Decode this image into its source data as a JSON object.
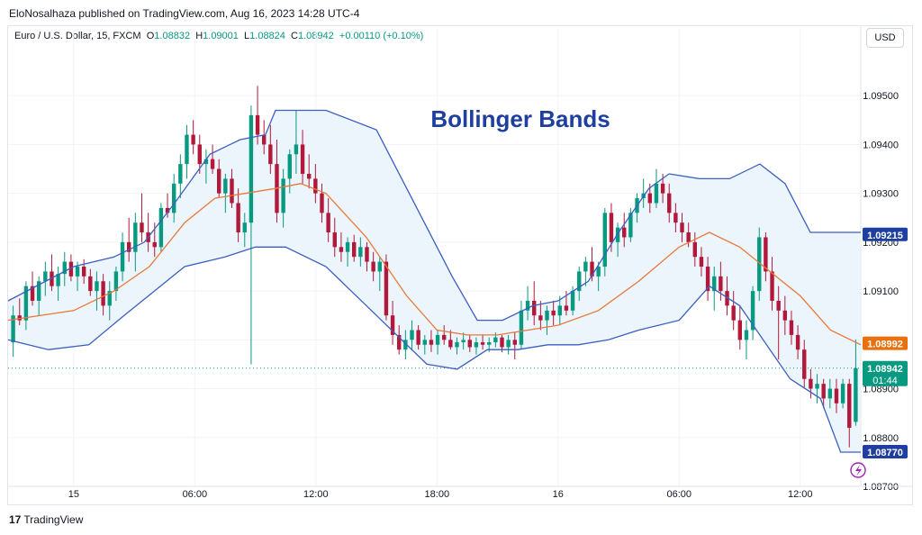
{
  "header": {
    "publisher": "EloNosalhaza published on TradingView.com, Aug 16, 2023 14:28 UTC-4"
  },
  "legend": {
    "symbol": "Euro / U.S. Dollar, 15, FXCM",
    "o_label": "O",
    "o_value": "1.08832",
    "h_label": "H",
    "h_value": "1.09001",
    "l_label": "L",
    "l_value": "1.08824",
    "c_label": "C",
    "c_value": "1.08942",
    "change": "+0.00110 (+0.10%)"
  },
  "currency": "USD",
  "footer": {
    "brand": "TradingView",
    "logo": "17"
  },
  "colors": {
    "up": "#089981",
    "down": "#b2183a",
    "band": "#3b5fc0",
    "fill": "#e9f3fb",
    "basis": "#e8793a",
    "accent": "#1e3fa0"
  },
  "chart_data": {
    "type": "candlestick",
    "title": "Bollinger Bands",
    "interval": "15",
    "ylim": [
      1.087,
      1.096
    ],
    "yticks": [
      "1.09500",
      "1.09400",
      "1.09300",
      "1.09200",
      "1.09100",
      "1.09000",
      "1.08900",
      "1.08800",
      "1.08700"
    ],
    "xticks": [
      {
        "label": "15",
        "t": 0
      },
      {
        "label": "06:00",
        "t": 24
      },
      {
        "label": "12:00",
        "t": 48
      },
      {
        "label": "18:00",
        "t": 72
      },
      {
        "label": "16",
        "t": 96
      },
      {
        "label": "06:00",
        "t": 120
      },
      {
        "label": "12:00",
        "t": 144
      }
    ],
    "t_range": [
      -13,
      156
    ],
    "price_labels": [
      {
        "value": 1.09215,
        "text": "1.09215",
        "color": "#1e3fa0"
      },
      {
        "value": 1.08992,
        "text": "1.08992",
        "color": "#e8700f"
      },
      {
        "value": 1.08942,
        "text": "1.08942",
        "sub": "01:44",
        "color": "#089981"
      },
      {
        "value": 1.0877,
        "text": "1.08770",
        "color": "#1e3fa0"
      }
    ],
    "candles": [
      [
        1.08995,
        1.0907,
        1.08965,
        1.0905
      ],
      [
        1.0905,
        1.09085,
        1.0903,
        1.0904
      ],
      [
        1.0904,
        1.0912,
        1.0902,
        1.0911
      ],
      [
        1.0911,
        1.0914,
        1.0907,
        1.0908
      ],
      [
        1.0908,
        1.0913,
        1.0905,
        1.0912
      ],
      [
        1.0912,
        1.0916,
        1.0909,
        1.0914
      ],
      [
        1.0914,
        1.09175,
        1.091,
        1.0911
      ],
      [
        1.0911,
        1.0915,
        1.0908,
        1.09135
      ],
      [
        1.09135,
        1.0918,
        1.0911,
        1.0916
      ],
      [
        1.0916,
        1.09175,
        1.0912,
        1.0913
      ],
      [
        1.0913,
        1.0916,
        1.091,
        1.0915
      ],
      [
        1.0915,
        1.09165,
        1.09115,
        1.0913
      ],
      [
        1.0913,
        1.09145,
        1.0909,
        1.091
      ],
      [
        1.091,
        1.0914,
        1.0906,
        1.0912
      ],
      [
        1.0912,
        1.09135,
        1.0905,
        1.0907
      ],
      [
        1.0907,
        1.0912,
        1.0904,
        1.091
      ],
      [
        1.091,
        1.0915,
        1.0908,
        1.0914
      ],
      [
        1.0914,
        1.0922,
        1.0912,
        1.092
      ],
      [
        1.092,
        1.0925,
        1.0916,
        1.0918
      ],
      [
        1.0918,
        1.0926,
        1.0914,
        1.0924
      ],
      [
        1.0924,
        1.093,
        1.092,
        1.0922
      ],
      [
        1.0922,
        1.0926,
        1.0918,
        1.092
      ],
      [
        1.092,
        1.0924,
        1.0917,
        1.0919
      ],
      [
        1.0919,
        1.0928,
        1.0918,
        1.0927
      ],
      [
        1.0927,
        1.093,
        1.0925,
        1.0926
      ],
      [
        1.0926,
        1.0934,
        1.0924,
        1.0932
      ],
      [
        1.0932,
        1.0938,
        1.0929,
        1.0936
      ],
      [
        1.0936,
        1.0944,
        1.0933,
        1.0942
      ],
      [
        1.0942,
        1.0945,
        1.0938,
        1.094
      ],
      [
        1.094,
        1.0942,
        1.0934,
        1.0936
      ],
      [
        1.0936,
        1.0939,
        1.0932,
        1.0937
      ],
      [
        1.0937,
        1.094,
        1.0934,
        1.0935
      ],
      [
        1.0935,
        1.0937,
        1.0929,
        1.093
      ],
      [
        1.093,
        1.0934,
        1.0926,
        1.0933
      ],
      [
        1.0933,
        1.0935,
        1.0927,
        1.0928
      ],
      [
        1.0928,
        1.0931,
        1.092,
        1.0922
      ],
      [
        1.0922,
        1.0926,
        1.0919,
        1.0924
      ],
      [
        1.0924,
        1.0948,
        1.0895,
        1.0946
      ],
      [
        1.0946,
        1.0952,
        1.094,
        1.0942
      ],
      [
        1.0942,
        1.0945,
        1.0938,
        1.094
      ],
      [
        1.094,
        1.0944,
        1.0934,
        1.0936
      ],
      [
        1.0936,
        1.0941,
        1.0924,
        1.0926
      ],
      [
        1.0926,
        1.0935,
        1.0923,
        1.0933
      ],
      [
        1.0933,
        1.0939,
        1.093,
        1.0938
      ],
      [
        1.0938,
        1.0947,
        1.0934,
        1.094
      ],
      [
        1.094,
        1.0943,
        1.0932,
        1.0934
      ],
      [
        1.0934,
        1.0938,
        1.0931,
        1.0933
      ],
      [
        1.0933,
        1.0936,
        1.0928,
        1.093
      ],
      [
        1.093,
        1.0932,
        1.0924,
        1.0926
      ],
      [
        1.0926,
        1.0929,
        1.092,
        1.0922
      ],
      [
        1.0922,
        1.0925,
        1.0917,
        1.0919
      ],
      [
        1.0919,
        1.0922,
        1.0916,
        1.0918
      ],
      [
        1.0918,
        1.0921,
        1.0915,
        1.092
      ],
      [
        1.092,
        1.09215,
        1.0916,
        1.0917
      ],
      [
        1.0917,
        1.0921,
        1.0915,
        1.0919
      ],
      [
        1.0919,
        1.092,
        1.0914,
        1.0916
      ],
      [
        1.0916,
        1.0918,
        1.0912,
        1.0914
      ],
      [
        1.0914,
        1.0917,
        1.091,
        1.0916
      ],
      [
        1.0916,
        1.09175,
        1.0904,
        1.0905
      ],
      [
        1.0905,
        1.0908,
        1.0899,
        1.0901
      ],
      [
        1.0901,
        1.0903,
        1.0897,
        1.0898
      ],
      [
        1.0898,
        1.0902,
        1.0896,
        1.09
      ],
      [
        1.09,
        1.0904,
        1.0898,
        1.0902
      ],
      [
        1.0902,
        1.0903,
        1.0898,
        1.0899
      ],
      [
        1.0899,
        1.0901,
        1.0897,
        1.09
      ],
      [
        1.09,
        1.0902,
        1.08975,
        1.0899
      ],
      [
        1.0899,
        1.0902,
        1.0897,
        1.0901
      ],
      [
        1.0901,
        1.0903,
        1.0899,
        1.09
      ],
      [
        1.09,
        1.0902,
        1.0898,
        1.08985
      ],
      [
        1.08985,
        1.09005,
        1.0897,
        1.08995
      ],
      [
        1.08995,
        1.09015,
        1.0898,
        1.09
      ],
      [
        1.09,
        1.0901,
        1.08975,
        1.08985
      ],
      [
        1.08985,
        1.09005,
        1.0897,
        1.08995
      ],
      [
        1.08995,
        1.0901,
        1.0898,
        1.0899
      ],
      [
        1.0899,
        1.09005,
        1.08975,
        1.08995
      ],
      [
        1.08995,
        1.09015,
        1.08985,
        1.09005
      ],
      [
        1.09005,
        1.0901,
        1.08975,
        1.08985
      ],
      [
        1.08985,
        1.0901,
        1.0897,
        1.09
      ],
      [
        1.09,
        1.09015,
        1.0896,
        1.0899
      ],
      [
        1.0899,
        1.0908,
        1.0898,
        1.0906
      ],
      [
        1.0906,
        1.0911,
        1.0904,
        1.0908
      ],
      [
        1.0908,
        1.0912,
        1.0903,
        1.0905
      ],
      [
        1.0905,
        1.0908,
        1.0902,
        1.0904
      ],
      [
        1.0904,
        1.0907,
        1.0901,
        1.0906
      ],
      [
        1.0906,
        1.0908,
        1.0903,
        1.0905
      ],
      [
        1.0905,
        1.0909,
        1.0903,
        1.0907
      ],
      [
        1.0907,
        1.091,
        1.0905,
        1.0906
      ],
      [
        1.0906,
        1.0911,
        1.0905,
        1.091
      ],
      [
        1.091,
        1.0915,
        1.0908,
        1.0914
      ],
      [
        1.0914,
        1.0917,
        1.0911,
        1.0916
      ],
      [
        1.0916,
        1.0919,
        1.0912,
        1.0913
      ],
      [
        1.0913,
        1.0916,
        1.091,
        1.0915
      ],
      [
        1.0915,
        1.0927,
        1.0913,
        1.0926
      ],
      [
        1.0926,
        1.0928,
        1.0918,
        1.092
      ],
      [
        1.092,
        1.0924,
        1.0917,
        1.0923
      ],
      [
        1.0923,
        1.0926,
        1.0919,
        1.0921
      ],
      [
        1.0921,
        1.0927,
        1.092,
        1.0926
      ],
      [
        1.0926,
        1.093,
        1.0924,
        1.0929
      ],
      [
        1.0929,
        1.0933,
        1.0927,
        1.093
      ],
      [
        1.093,
        1.0932,
        1.0926,
        1.0928
      ],
      [
        1.0928,
        1.0935,
        1.0927,
        1.0932
      ],
      [
        1.0932,
        1.0934,
        1.0928,
        1.093
      ],
      [
        1.093,
        1.0932,
        1.0924,
        1.0926
      ],
      [
        1.0926,
        1.0928,
        1.0922,
        1.0924
      ],
      [
        1.0924,
        1.0926,
        1.092,
        1.0922
      ],
      [
        1.0922,
        1.0924,
        1.0919,
        1.092
      ],
      [
        1.092,
        1.0922,
        1.0915,
        1.0917
      ],
      [
        1.0917,
        1.0919,
        1.0913,
        1.0915
      ],
      [
        1.0915,
        1.0917,
        1.0908,
        1.091
      ],
      [
        1.091,
        1.0915,
        1.0906,
        1.0913
      ],
      [
        1.0913,
        1.0916,
        1.0908,
        1.091
      ],
      [
        1.091,
        1.0913,
        1.0905,
        1.0907
      ],
      [
        1.0907,
        1.091,
        1.0902,
        1.0904
      ],
      [
        1.0904,
        1.0907,
        1.0898,
        1.09
      ],
      [
        1.09,
        1.0904,
        1.0896,
        1.0902
      ],
      [
        1.0902,
        1.0911,
        1.09,
        1.091
      ],
      [
        1.091,
        1.0923,
        1.0908,
        1.0921
      ],
      [
        1.0921,
        1.0922,
        1.0912,
        1.0914
      ],
      [
        1.0914,
        1.0917,
        1.0906,
        1.0908
      ],
      [
        1.0908,
        1.0911,
        1.0896,
        1.0906
      ],
      [
        1.0906,
        1.0909,
        1.0901,
        1.0904
      ],
      [
        1.0904,
        1.0906,
        1.0899,
        1.0901
      ],
      [
        1.0901,
        1.0903,
        1.0896,
        1.0898
      ],
      [
        1.0898,
        1.09,
        1.089,
        1.0892
      ],
      [
        1.0892,
        1.0894,
        1.0888,
        1.089
      ],
      [
        1.089,
        1.0893,
        1.0887,
        1.0891
      ],
      [
        1.0891,
        1.0892,
        1.0886,
        1.0888
      ],
      [
        1.0888,
        1.0892,
        1.0886,
        1.089
      ],
      [
        1.089,
        1.0892,
        1.0885,
        1.0887
      ],
      [
        1.0887,
        1.0892,
        1.0886,
        1.0891
      ],
      [
        1.0891,
        1.0892,
        1.0878,
        1.0882
      ],
      [
        1.08832,
        1.09001,
        1.08824,
        1.08942
      ]
    ],
    "upper_band": [
      [
        -13,
        1.0908
      ],
      [
        0,
        1.0915
      ],
      [
        8,
        1.0917
      ],
      [
        14,
        1.092
      ],
      [
        20,
        1.0928
      ],
      [
        27,
        1.0938
      ],
      [
        33,
        1.0941
      ],
      [
        38,
        1.0942
      ],
      [
        40,
        1.0947
      ],
      [
        50,
        1.0947
      ],
      [
        60,
        1.0943
      ],
      [
        70,
        1.0923
      ],
      [
        75,
        1.0913
      ],
      [
        80,
        1.0904
      ],
      [
        85,
        1.0904
      ],
      [
        91,
        1.0907
      ],
      [
        96,
        1.0908
      ],
      [
        102,
        1.0912
      ],
      [
        108,
        1.0922
      ],
      [
        114,
        1.0931
      ],
      [
        118,
        1.0934
      ],
      [
        124,
        1.0933
      ],
      [
        130,
        1.0933
      ],
      [
        136,
        1.0936
      ],
      [
        141,
        1.0932
      ],
      [
        146,
        1.0922
      ],
      [
        152,
        1.0922
      ],
      [
        156,
        1.0922
      ]
    ],
    "lower_band": [
      [
        -13,
        1.09
      ],
      [
        -5,
        1.0898
      ],
      [
        3,
        1.0899
      ],
      [
        10,
        1.0905
      ],
      [
        16,
        1.091
      ],
      [
        22,
        1.0915
      ],
      [
        30,
        1.0917
      ],
      [
        36,
        1.0919
      ],
      [
        42,
        1.0919
      ],
      [
        50,
        1.0915
      ],
      [
        60,
        1.0905
      ],
      [
        70,
        1.0895
      ],
      [
        76,
        1.0894
      ],
      [
        82,
        1.0898
      ],
      [
        88,
        1.0898
      ],
      [
        94,
        1.0899
      ],
      [
        100,
        1.0899
      ],
      [
        106,
        1.09
      ],
      [
        112,
        1.0902
      ],
      [
        120,
        1.0904
      ],
      [
        126,
        1.0911
      ],
      [
        132,
        1.0907
      ],
      [
        138,
        1.0898
      ],
      [
        142,
        1.0892
      ],
      [
        148,
        1.0888
      ],
      [
        152,
        1.0877
      ],
      [
        156,
        1.0877
      ]
    ],
    "basis": [
      [
        -13,
        1.0904
      ],
      [
        0,
        1.0906
      ],
      [
        8,
        1.091
      ],
      [
        15,
        1.0915
      ],
      [
        22,
        1.0924
      ],
      [
        28,
        1.0929
      ],
      [
        34,
        1.093
      ],
      [
        40,
        1.0931
      ],
      [
        45,
        1.0932
      ],
      [
        50,
        1.093
      ],
      [
        58,
        1.0921
      ],
      [
        66,
        1.0909
      ],
      [
        72,
        1.0902
      ],
      [
        78,
        1.0901
      ],
      [
        84,
        1.0901
      ],
      [
        90,
        1.0902
      ],
      [
        96,
        1.0903
      ],
      [
        104,
        1.0906
      ],
      [
        112,
        1.0912
      ],
      [
        120,
        1.0919
      ],
      [
        126,
        1.0922
      ],
      [
        132,
        1.0919
      ],
      [
        138,
        1.0914
      ],
      [
        144,
        1.0909
      ],
      [
        150,
        1.0902
      ],
      [
        156,
        1.0899
      ]
    ]
  }
}
